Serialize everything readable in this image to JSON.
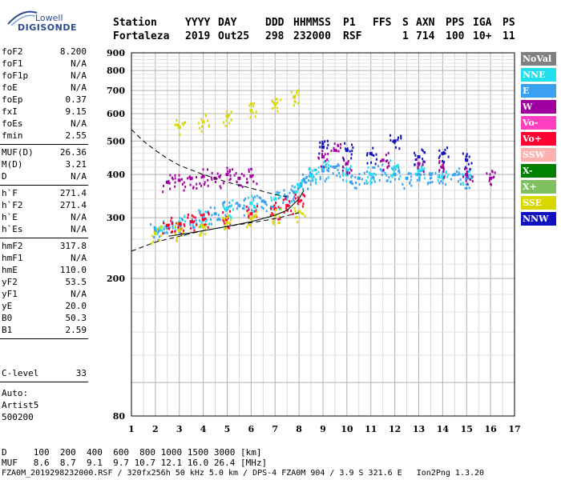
{
  "logo": {
    "line1": "Lowell",
    "line2": "DIGISONDE"
  },
  "header": {
    "labels": [
      "Station",
      "YYYY",
      "DAY",
      "DDD",
      "HHMMSS",
      "P1",
      "FFS",
      "S",
      "AXN",
      "PPS",
      "IGA",
      "PS"
    ],
    "values": [
      "Fortaleza",
      "2019",
      "Out25",
      "298",
      "232000",
      "RSF",
      "",
      "1",
      "714",
      "100",
      "10+",
      "11"
    ]
  },
  "params_group1": [
    {
      "name": "foF2",
      "value": "8.200"
    },
    {
      "name": "foF1",
      "value": "N/A"
    },
    {
      "name": "foF1p",
      "value": "N/A"
    },
    {
      "name": "foE",
      "value": "N/A"
    },
    {
      "name": "foEp",
      "value": "0.37"
    },
    {
      "name": "fxI",
      "value": "9.15"
    },
    {
      "name": "foEs",
      "value": "N/A"
    },
    {
      "name": "fmin",
      "value": "2.55"
    }
  ],
  "params_group2": [
    {
      "name": "MUF(D)",
      "value": "26.36"
    },
    {
      "name": "M(D)",
      "value": "3.21"
    },
    {
      "name": "D",
      "value": "N/A"
    }
  ],
  "params_group3": [
    {
      "name": "h`F",
      "value": "271.4"
    },
    {
      "name": "h`F2",
      "value": "271.4"
    },
    {
      "name": "h`E",
      "value": "N/A"
    },
    {
      "name": "h`Es",
      "value": "N/A"
    }
  ],
  "params_group4": [
    {
      "name": "hmF2",
      "value": "317.8"
    },
    {
      "name": "hmF1",
      "value": "N/A"
    },
    {
      "name": "hmE",
      "value": "110.0"
    },
    {
      "name": "yF2",
      "value": "53.5"
    },
    {
      "name": "yF1",
      "value": "N/A"
    },
    {
      "name": "yE",
      "value": "20.0"
    },
    {
      "name": "B0",
      "value": "50.3"
    },
    {
      "name": "B1",
      "value": "2.59"
    }
  ],
  "clevel": {
    "name": "C-level",
    "value": "33"
  },
  "auto": {
    "line1": "Auto:",
    "line2": "Artist5",
    "line3": "500200"
  },
  "legend": [
    {
      "label": "NoVal",
      "color": "#808080"
    },
    {
      "label": "NNE",
      "color": "#20e0f0"
    },
    {
      "label": "E",
      "color": "#3aa0f0"
    },
    {
      "label": "W",
      "color": "#a000a0"
    },
    {
      "label": "Vo-",
      "color": "#ff40c0"
    },
    {
      "label": "Vo+",
      "color": "#ff0030"
    },
    {
      "label": "SSW",
      "color": "#ffb0b0"
    },
    {
      "label": "X-",
      "color": "#008000"
    },
    {
      "label": "X+",
      "color": "#80c060"
    },
    {
      "label": "SSE",
      "color": "#d8d800"
    },
    {
      "label": "NNW",
      "color": "#1010c0"
    }
  ],
  "bottom": {
    "line_d": "D     100  200  400  600  800 1000 1500 3000 [km]",
    "line_muf": "MUF   8.6  8.7  9.1  9.7 10.7 12.1 16.0 26.4 [MHz]",
    "line_file": "FZA0M_2019298232000.RSF / 320fx256h 50 kHz 5.0 km / DPS-4 FZA0M 904 / 3.9 S 321.6 E   Ion2Png 1.3.20"
  },
  "chart_data": {
    "type": "scatter",
    "title": "",
    "xlabel": "",
    "ylabel": "",
    "xlim": [
      1,
      17
    ],
    "ylim": [
      80,
      900
    ],
    "x_ticks": [
      1,
      2,
      3,
      4,
      5,
      6,
      7,
      8,
      9,
      10,
      11,
      12,
      13,
      14,
      15,
      16,
      17
    ],
    "y_ticks": [
      80,
      200,
      300,
      400,
      500,
      600,
      700,
      800,
      900
    ],
    "y_scale": "log",
    "grid": true,
    "series": [
      {
        "name": "E",
        "color": "#3aa0f0",
        "x": [
          2.0,
          2.5,
          3.0,
          3.5,
          4.0,
          4.5,
          5.0,
          5.5,
          6.0,
          6.5,
          7.0,
          7.5,
          7.8,
          8.0,
          8.2,
          8.5,
          9.0,
          9.5,
          10.0,
          10.5,
          11.0,
          11.5,
          12.0,
          12.5,
          13.0,
          13.5,
          14.0,
          14.5,
          15.0
        ],
        "y": [
          275,
          280,
          285,
          292,
          300,
          308,
          318,
          325,
          330,
          335,
          340,
          345,
          355,
          370,
          385,
          400,
          410,
          420,
          400,
          390,
          400,
          410,
          400,
          390,
          400,
          400,
          395,
          400,
          390
        ]
      },
      {
        "name": "NNE",
        "color": "#20e0f0",
        "x": [
          2.2,
          3.0,
          4.0,
          5.0,
          6.0,
          7.0,
          8.0,
          8.5,
          9.0,
          10.0,
          11.0,
          12.0,
          13.0,
          14.0,
          15.0
        ],
        "y": [
          280,
          290,
          305,
          320,
          330,
          340,
          370,
          395,
          420,
          410,
          400,
          420,
          410,
          395,
          400
        ]
      },
      {
        "name": "W",
        "color": "#a000a0",
        "x": [
          2.5,
          3.0,
          3.5,
          4.0,
          4.5,
          5.0,
          5.5,
          6.0,
          9.0,
          9.5,
          10.0,
          11.5,
          13.0,
          14.0,
          15.0,
          16.0
        ],
        "y": [
          380,
          385,
          390,
          395,
          390,
          400,
          390,
          395,
          450,
          470,
          430,
          440,
          430,
          420,
          400,
          390
        ]
      },
      {
        "name": "Vo+",
        "color": "#ff0030",
        "x": [
          2.5,
          3.0,
          3.5,
          4.0,
          5.0,
          6.0,
          7.0,
          7.5,
          8.0
        ],
        "y": [
          285,
          288,
          292,
          296,
          300,
          308,
          318,
          325,
          335
        ]
      },
      {
        "name": "SSE",
        "color": "#d8d800",
        "x": [
          2.0,
          3.0,
          4.0,
          5.0,
          6.0,
          7.0,
          8.0,
          3.0,
          4.0,
          5.0,
          6.0,
          7.0,
          7.8
        ],
        "y": [
          270,
          275,
          282,
          290,
          298,
          305,
          312,
          548,
          568,
          590,
          612,
          640,
          670
        ]
      },
      {
        "name": "NNW",
        "color": "#1010c0",
        "x": [
          9.0,
          10.0,
          11.0,
          12.0,
          13.0,
          14.0,
          15.0
        ],
        "y": [
          480,
          470,
          460,
          500,
          450,
          460,
          440
        ]
      }
    ],
    "curves": [
      {
        "name": "dashed model",
        "style": "dashed",
        "x": [
          1.0,
          1.5,
          2.0,
          2.5,
          3.0,
          4.0,
          5.0,
          6.0,
          7.0,
          7.5
        ],
        "y": [
          540,
          500,
          470,
          445,
          425,
          400,
          380,
          365,
          350,
          345
        ]
      },
      {
        "name": "dashed lower",
        "style": "dashed",
        "x": [
          1.0,
          2.0,
          3.0,
          4.0,
          5.0,
          6.0,
          7.0,
          8.0
        ],
        "y": [
          240,
          255,
          265,
          275,
          283,
          290,
          298,
          310
        ]
      },
      {
        "name": "profile",
        "style": "solid",
        "x": [
          2.55,
          3.0,
          4.0,
          5.0,
          6.0,
          7.0,
          7.5,
          8.0,
          8.2
        ],
        "y": [
          265,
          268,
          275,
          283,
          292,
          305,
          315,
          340,
          360
        ]
      }
    ]
  }
}
